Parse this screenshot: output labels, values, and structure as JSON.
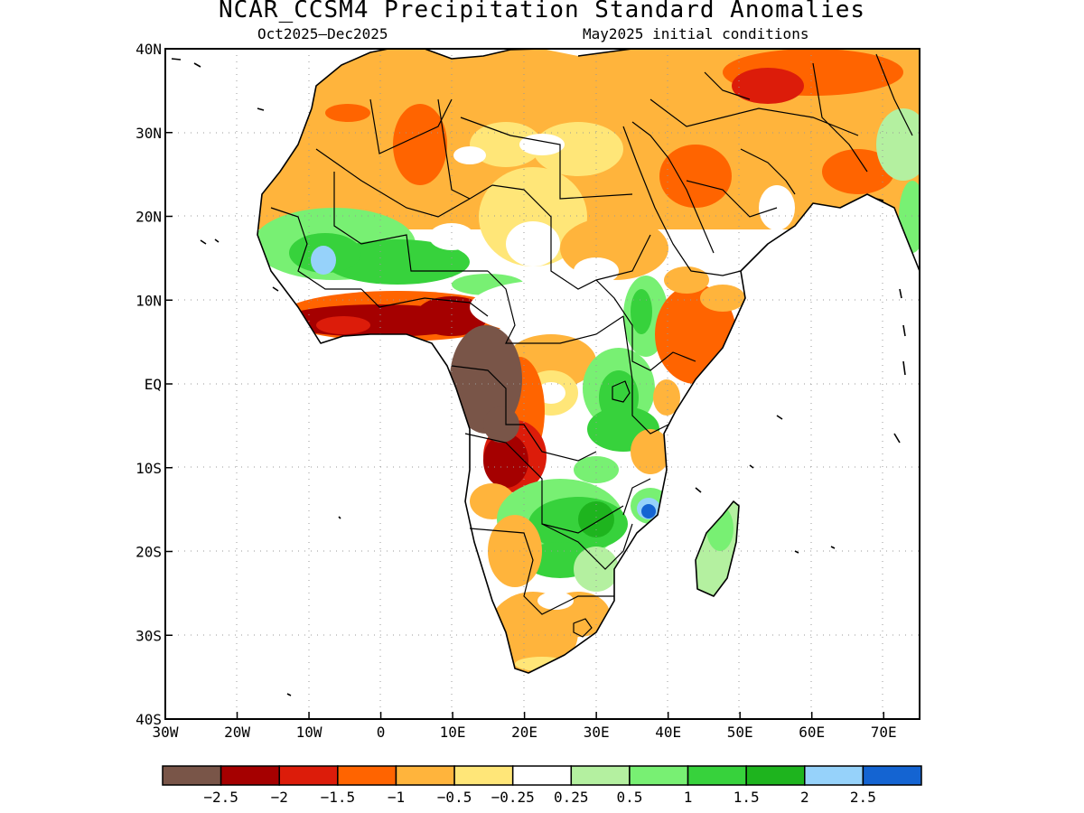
{
  "title": "NCAR_CCSM4 Precipitation Standard Anomalies",
  "subtitle_left": "Oct2025–Dec2025",
  "subtitle_right": "May2025 initial conditions",
  "map": {
    "lon_range": [
      -30,
      75
    ],
    "lat_range": [
      -40,
      40
    ],
    "y_ticks": [
      {
        "lat": 40,
        "label": "40N"
      },
      {
        "lat": 30,
        "label": "30N"
      },
      {
        "lat": 20,
        "label": "20N"
      },
      {
        "lat": 10,
        "label": "10N"
      },
      {
        "lat": 0,
        "label": "EQ"
      },
      {
        "lat": -10,
        "label": "10S"
      },
      {
        "lat": -20,
        "label": "20S"
      },
      {
        "lat": -30,
        "label": "30S"
      },
      {
        "lat": -40,
        "label": "40S"
      }
    ],
    "x_ticks": [
      {
        "lon": -30,
        "label": "30W"
      },
      {
        "lon": -20,
        "label": "20W"
      },
      {
        "lon": -10,
        "label": "10W"
      },
      {
        "lon": 0,
        "label": "0"
      },
      {
        "lon": 10,
        "label": "10E"
      },
      {
        "lon": 20,
        "label": "20E"
      },
      {
        "lon": 30,
        "label": "30E"
      },
      {
        "lon": 40,
        "label": "40E"
      },
      {
        "lon": 50,
        "label": "50E"
      },
      {
        "lon": 60,
        "label": "60E"
      },
      {
        "lon": 70,
        "label": "70E"
      }
    ]
  },
  "colorbar": {
    "colors": [
      "#795548",
      "#a50000",
      "#dc1c0a",
      "#ff6400",
      "#ffb43c",
      "#ffe678",
      "#ffffff",
      "#b4f0a0",
      "#78f073",
      "#37d23c",
      "#1eb41e",
      "#96d2fa",
      "#1464d2"
    ],
    "labels": [
      "−2.5",
      "−2",
      "−1.5",
      "−1",
      "−0.5",
      "−0.25",
      "0.25",
      "0.5",
      "1",
      "1.5",
      "2",
      "2.5"
    ]
  }
}
